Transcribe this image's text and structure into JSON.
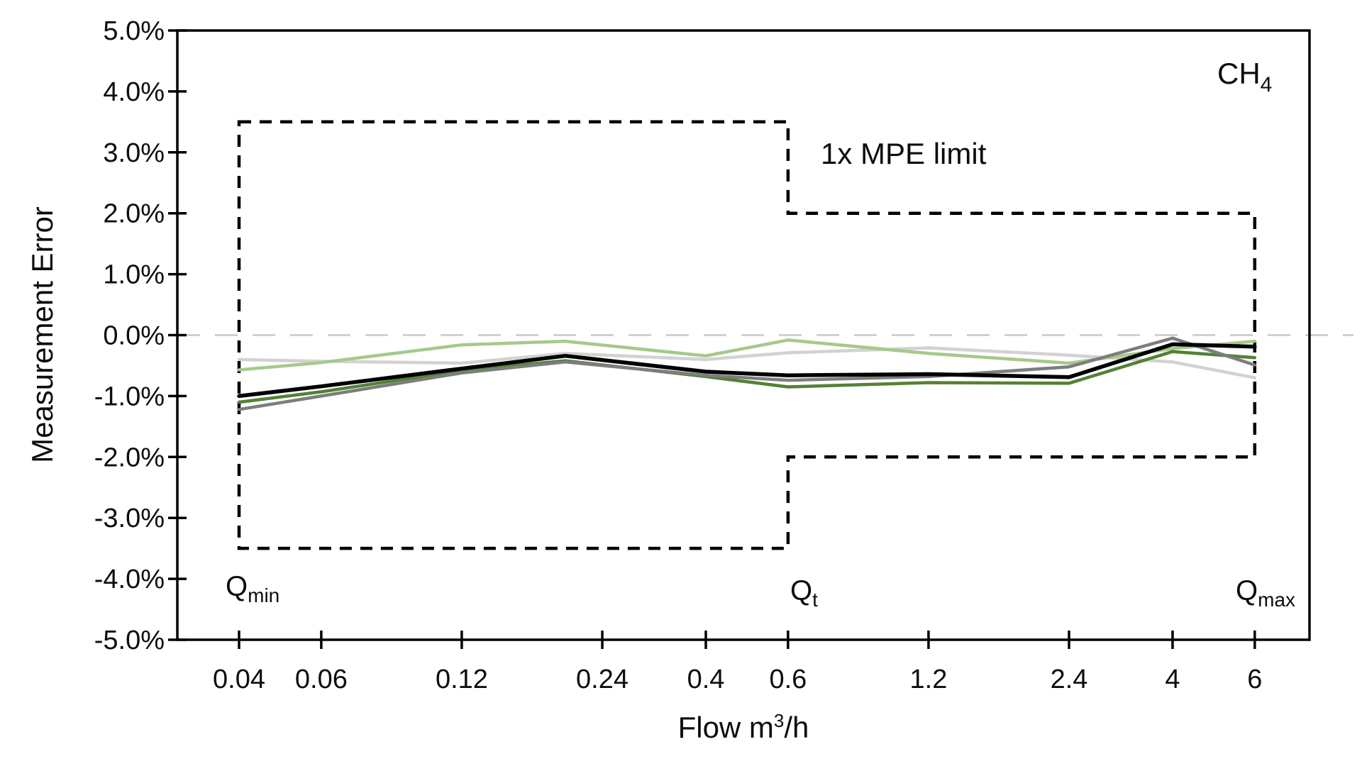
{
  "labels": {
    "gas": {
      "main": "CH",
      "sub": "4"
    },
    "mpe": "1x MPE limit",
    "y_axis_title": "Measurement Error",
    "x_axis_title": {
      "pre": "Flow m",
      "sup": "3",
      "post": "/h"
    },
    "qmin": {
      "main": "Q",
      "sub": "min"
    },
    "qt": {
      "main": "Q",
      "sub": "t"
    },
    "qmax": {
      "main": "Q",
      "sub": "max"
    }
  },
  "chart_data": {
    "type": "line",
    "title": "CH4 measurement error vs flow",
    "xlabel": "Flow m3/h",
    "ylabel": "Measurement Error",
    "x_axis": {
      "scale": "log",
      "min": 0.0295,
      "max": 7.86,
      "ticks": [
        0.04,
        0.06,
        0.12,
        0.24,
        0.4,
        0.6,
        1.2,
        2.4,
        4,
        6
      ],
      "tick_labels": [
        "0.04",
        "0.06",
        "0.12",
        "0.24",
        "0.4",
        "0.6",
        "1.2",
        "2.4",
        "4",
        "6"
      ]
    },
    "y_axis": {
      "min": -5,
      "max": 5,
      "ticks": [
        5,
        4,
        3,
        2,
        1,
        0,
        -1,
        -2,
        -3,
        -4,
        -5
      ],
      "tick_labels": [
        "5.0%",
        "4.0%",
        "3.0%",
        "2.0%",
        "1.0%",
        "0.0%",
        "-1.0%",
        "-2.0%",
        "-3.0%",
        "-4.0%",
        "-5.0%"
      ],
      "unit": "percent"
    },
    "grid": "off",
    "legend": "none",
    "zero_line": {
      "y": 0,
      "color": "#c8c8c8",
      "style": "dashed"
    },
    "mpe_limit": {
      "label": "1x MPE limit",
      "color": "#000000",
      "style": "dashed",
      "closed": true,
      "vertices_flow_percent": [
        [
          0.04,
          3.5
        ],
        [
          0.6,
          3.5
        ],
        [
          0.6,
          2.0
        ],
        [
          6,
          2.0
        ],
        [
          6,
          -2.0
        ],
        [
          0.6,
          -2.0
        ],
        [
          0.6,
          -3.5
        ],
        [
          0.04,
          -3.5
        ]
      ]
    },
    "key_flows": {
      "qmin": 0.04,
      "qt": 0.6,
      "qmax": 6
    },
    "x": [
      0.04,
      0.06,
      0.12,
      0.2,
      0.4,
      0.6,
      1.2,
      2.4,
      4,
      6
    ],
    "series": [
      {
        "name": "light-gray",
        "color": "#d2d2d2",
        "values": [
          -0.4,
          -0.43,
          -0.46,
          -0.3,
          -0.4,
          -0.29,
          -0.21,
          -0.33,
          -0.44,
          -0.7
        ]
      },
      {
        "name": "light-green",
        "color": "#a5c98b",
        "values": [
          -0.57,
          -0.45,
          -0.16,
          -0.1,
          -0.34,
          -0.08,
          -0.3,
          -0.46,
          -0.22,
          -0.1
        ]
      },
      {
        "name": "dark-green",
        "color": "#538135",
        "values": [
          -1.1,
          -0.93,
          -0.58,
          -0.42,
          -0.68,
          -0.85,
          -0.78,
          -0.79,
          -0.27,
          -0.37
        ]
      },
      {
        "name": "gray",
        "color": "#7d7d7d",
        "values": [
          -1.22,
          -1.0,
          -0.62,
          -0.44,
          -0.66,
          -0.74,
          -0.68,
          -0.52,
          -0.05,
          -0.49
        ]
      },
      {
        "name": "black",
        "color": "#000000",
        "values": [
          -1.0,
          -0.84,
          -0.55,
          -0.34,
          -0.6,
          -0.66,
          -0.64,
          -0.69,
          -0.15,
          -0.19
        ]
      }
    ]
  }
}
